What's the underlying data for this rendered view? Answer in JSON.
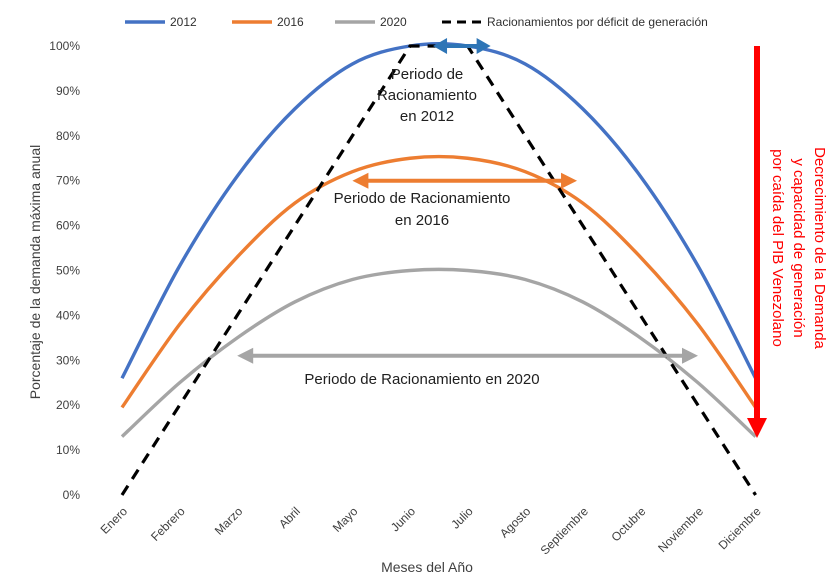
{
  "chart_data": {
    "type": "line",
    "xlabel": "Meses del Año",
    "ylabel": "Porcentaje de la demanda máxima anual",
    "categories": [
      "Enero",
      "Febrero",
      "Marzo",
      "Abril",
      "Mayo",
      "Junio",
      "Julio",
      "Agosto",
      "Septiembre",
      "Octubre",
      "Noviembre",
      "Diciembre"
    ],
    "y_ticks": [
      "0%",
      "10%",
      "20%",
      "30%",
      "40%",
      "50%",
      "60%",
      "70%",
      "80%",
      "90%",
      "100%"
    ],
    "ylim": [
      0,
      100
    ],
    "legend_position": "top",
    "series": [
      {
        "name": "2012",
        "color": "#4472c4",
        "dashed": false,
        "values": [
          26,
          51,
          71,
          86,
          96,
          100,
          100,
          96,
          86,
          71,
          51,
          26
        ]
      },
      {
        "name": "2016",
        "color": "#ed7d31",
        "dashed": false,
        "values": [
          19.5,
          38,
          53,
          65,
          72,
          75,
          75,
          72,
          65,
          53,
          38,
          19.5
        ]
      },
      {
        "name": "2020",
        "color": "#a5a5a5",
        "dashed": false,
        "values": [
          13,
          25,
          35,
          43,
          48,
          50,
          50,
          48,
          43,
          35,
          25,
          13
        ]
      },
      {
        "name": "Racionamientos por déficit de generación",
        "color": "#000000",
        "dashed": true,
        "values": [
          0,
          20,
          40,
          60,
          80,
          100,
          100,
          80,
          60,
          40,
          20,
          0
        ]
      }
    ],
    "annotations": [
      {
        "text_lines": [
          "Periodo de",
          "Racionamiento",
          "en 2012"
        ],
        "color": "#2e75b6",
        "x_start": 5.4,
        "x_end": 6.4,
        "y": 100
      },
      {
        "text_lines": [
          "Periodo de Racionamiento",
          "en 2016"
        ],
        "color": "#ed7d31",
        "x_start": 4.0,
        "x_end": 7.9,
        "y": 70
      },
      {
        "text_lines": [
          "Periodo de Racionamiento en 2020"
        ],
        "color": "#a5a5a5",
        "x_start": 2.0,
        "x_end": 10.0,
        "y": 31
      }
    ],
    "side_note": {
      "text_lines": [
        "Decrecimiento de la Demanda",
        "y capacidad de generación",
        "por caída del PIB Venezolano"
      ],
      "color": "#ff0000"
    }
  }
}
